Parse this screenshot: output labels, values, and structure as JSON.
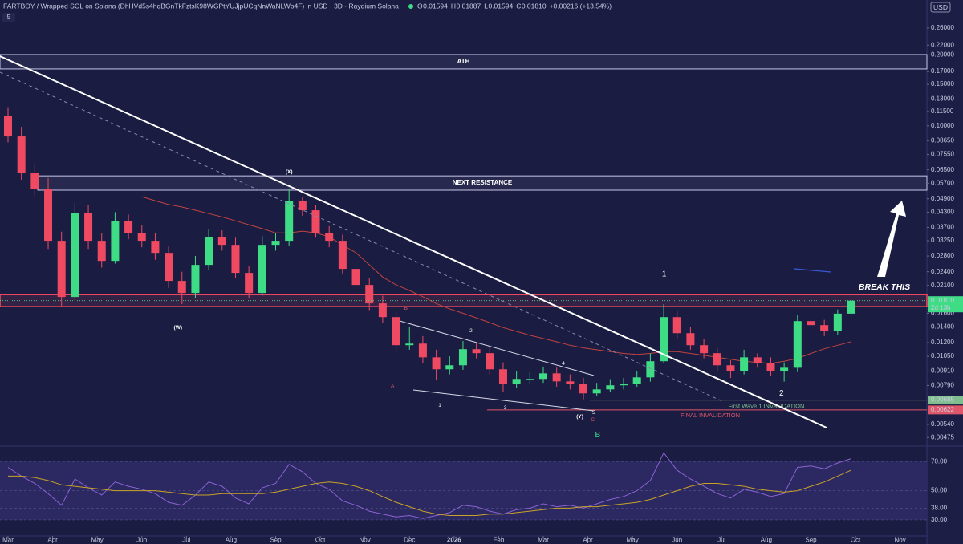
{
  "header": {
    "title": "FARTBOY / Wrapped SOL on Solana (DhHVd5s4hqBGnTkFztsK98WGPtYUJjpUCqNnWaNLWb4F) in USD · 3D · Raydium Solana",
    "quote": [
      {
        "label": "O",
        "value": "0.01594"
      },
      {
        "label": "H",
        "value": "0.01887"
      },
      {
        "label": "L",
        "value": "0.01594"
      },
      {
        "label": "C",
        "value": "0.01810"
      }
    ],
    "change": "+0.00216 (+13.54%)",
    "currency": "USD",
    "badge": "5"
  },
  "chart_data": [
    {
      "type": "candlestick",
      "y_scale": "log",
      "up_color": "#3fdc86",
      "down_color": "#ef4a62",
      "xlim": [
        -0.18,
        20.6
      ],
      "ylim": [
        0.0044,
        0.342
      ],
      "yticks": [
        {
          "value": 0.26,
          "label": "0.26000"
        },
        {
          "value": 0.22,
          "label": "0.22000"
        },
        {
          "value": 0.2,
          "label": "0.20000"
        },
        {
          "value": 0.17,
          "label": "0.17000"
        },
        {
          "value": 0.15,
          "label": "0.15000"
        },
        {
          "value": 0.13,
          "label": "0.13000"
        },
        {
          "value": 0.115,
          "label": "0.11500"
        },
        {
          "value": 0.1,
          "label": "0.10000"
        },
        {
          "value": 0.0865,
          "label": "0.08650"
        },
        {
          "value": 0.0755,
          "label": "0.07550"
        },
        {
          "value": 0.065,
          "label": "0.06500"
        },
        {
          "value": 0.057,
          "label": "0.05700"
        },
        {
          "value": 0.049,
          "label": "0.04900"
        },
        {
          "value": 0.043,
          "label": "0.04300"
        },
        {
          "value": 0.037,
          "label": "0.03700"
        },
        {
          "value": 0.0325,
          "label": "0.03250"
        },
        {
          "value": 0.028,
          "label": "0.02800"
        },
        {
          "value": 0.024,
          "label": "0.02400"
        },
        {
          "value": 0.021,
          "label": "0.02100"
        },
        {
          "value": 0.016,
          "label": "0.01600"
        },
        {
          "value": 0.014,
          "label": "0.01400"
        },
        {
          "value": 0.012,
          "label": "0.01200"
        },
        {
          "value": 0.0105,
          "label": "0.01050"
        },
        {
          "value": 0.0091,
          "label": "0.00910"
        },
        {
          "value": 0.0079,
          "label": "0.00790"
        },
        {
          "value": 0.0054,
          "label": "0.00540"
        },
        0.00475
      ],
      "x": [
        0,
        0.3,
        0.6,
        0.9,
        1.2,
        1.5,
        1.8,
        2.1,
        2.4,
        2.7,
        3,
        3.3,
        3.6,
        3.9,
        4.2,
        4.5,
        4.8,
        5.1,
        5.4,
        5.7,
        6,
        6.3,
        6.6,
        6.9,
        7.2,
        7.5,
        7.8,
        8.1,
        8.4,
        8.7,
        9,
        9.3,
        9.6,
        9.9,
        10.2,
        10.5,
        10.8,
        11.1,
        11.4,
        11.7,
        12,
        12.3,
        12.6,
        12.9,
        13.2,
        13.5,
        13.8,
        14.1,
        14.4,
        14.7,
        15,
        15.3,
        15.6,
        15.9,
        16.2,
        16.5,
        16.8,
        17.1,
        17.4,
        17.7,
        18,
        18.3,
        18.6,
        18.9
      ],
      "open": [
        0.11,
        0.0901,
        0.0633,
        0.0541,
        0.03249,
        0.01876,
        0.04276,
        0.03249,
        0.02669,
        0.03951,
        0.03512,
        0.03249,
        0.02887,
        0.02195,
        0.01951,
        0.02567,
        0.03378,
        0.03123,
        0.02374,
        0.01951,
        0.03123,
        0.03249,
        0.04811,
        0.04378,
        0.03512,
        0.03249,
        0.02469,
        0.0211,
        0.01762,
        0.01541,
        0.01171,
        0.01189,
        0.0104,
        0.00925,
        0.00962,
        0.01126,
        0.01083,
        0.00925,
        0.00803,
        0.00842,
        0.00842,
        0.00889,
        0.00822,
        0.00803,
        0.00731,
        0.0076,
        0.00791,
        0.00803,
        0.00855,
        0.01001,
        0.01541,
        0.01317,
        0.01171,
        0.01083,
        0.00962,
        0.0091,
        0.0104,
        0.00985,
        0.0091,
        0.00939,
        0.01482,
        0.01425,
        0.01349,
        0.01594
      ],
      "high": [
        0.12,
        0.099,
        0.069,
        0.06,
        0.0355,
        0.047,
        0.046,
        0.035,
        0.043,
        0.042,
        0.038,
        0.035,
        0.031,
        0.024,
        0.028,
        0.0365,
        0.036,
        0.0335,
        0.0255,
        0.034,
        0.035,
        0.054,
        0.05,
        0.046,
        0.0375,
        0.0345,
        0.0265,
        0.0225,
        0.019,
        0.0165,
        0.014,
        0.0128,
        0.0112,
        0.0105,
        0.0122,
        0.012,
        0.0116,
        0.0099,
        0.0091,
        0.009,
        0.0095,
        0.0094,
        0.0088,
        0.0085,
        0.0081,
        0.0084,
        0.0085,
        0.0091,
        0.0108,
        0.0175,
        0.0163,
        0.014,
        0.0124,
        0.0114,
        0.0101,
        0.0112,
        0.0108,
        0.0104,
        0.0099,
        0.0158,
        0.0175,
        0.015,
        0.0166,
        0.01887
      ],
      "low": [
        0.085,
        0.059,
        0.05,
        0.03,
        0.0172,
        0.018,
        0.03,
        0.025,
        0.026,
        0.033,
        0.0305,
        0.027,
        0.0205,
        0.0175,
        0.0185,
        0.0245,
        0.0295,
        0.0225,
        0.0185,
        0.019,
        0.0295,
        0.031,
        0.0415,
        0.0335,
        0.0305,
        0.0235,
        0.02,
        0.0165,
        0.0145,
        0.0108,
        0.0112,
        0.0098,
        0.0083,
        0.0088,
        0.0092,
        0.0103,
        0.0088,
        0.0074,
        0.0077,
        0.008,
        0.0081,
        0.0078,
        0.0076,
        0.0069,
        0.0071,
        0.0074,
        0.0076,
        0.0078,
        0.0082,
        0.0098,
        0.0125,
        0.0112,
        0.0103,
        0.0091,
        0.0085,
        0.0088,
        0.0094,
        0.0087,
        0.0082,
        0.009,
        0.0136,
        0.0128,
        0.013,
        0.01594
      ],
      "close": [
        0.0901,
        0.0633,
        0.0541,
        0.03249,
        0.01876,
        0.04276,
        0.03249,
        0.02669,
        0.03951,
        0.03512,
        0.03249,
        0.02887,
        0.02195,
        0.01951,
        0.02567,
        0.03378,
        0.03123,
        0.02374,
        0.01951,
        0.03123,
        0.03249,
        0.04811,
        0.04378,
        0.03512,
        0.03249,
        0.02469,
        0.0211,
        0.01762,
        0.01541,
        0.01171,
        0.01189,
        0.0104,
        0.00925,
        0.00962,
        0.01126,
        0.01083,
        0.00925,
        0.00803,
        0.00842,
        0.00842,
        0.00889,
        0.00822,
        0.00803,
        0.00731,
        0.0076,
        0.00791,
        0.00803,
        0.00855,
        0.01001,
        0.01541,
        0.01317,
        0.01171,
        0.01083,
        0.00962,
        0.0091,
        0.0104,
        0.00985,
        0.0091,
        0.00939,
        0.01482,
        0.01425,
        0.01349,
        0.01594,
        0.0181
      ],
      "ma": {
        "color": "#c0433f",
        "values": [
          null,
          null,
          null,
          null,
          null,
          null,
          null,
          null,
          null,
          null,
          0.05,
          0.0481,
          0.0463,
          0.0452,
          0.0438,
          0.0424,
          0.041,
          0.0395,
          0.038,
          0.0366,
          0.0351,
          0.0351,
          0.0357,
          0.0351,
          0.0338,
          0.0312,
          0.0289,
          0.0257,
          0.0228,
          0.0211,
          0.02,
          0.0188,
          0.0176,
          0.0167,
          0.016,
          0.0153,
          0.0146,
          0.0139,
          0.0134,
          0.0129,
          0.0125,
          0.0121,
          0.0117,
          0.0114,
          0.0112,
          0.011,
          0.0108,
          0.0107,
          0.0108,
          0.011,
          0.011,
          0.0108,
          0.0106,
          0.0104,
          0.0102,
          0.01,
          0.0099,
          0.0098,
          0.01,
          0.0103,
          0.0108,
          0.0113,
          0.0117,
          0.0121
        ]
      },
      "zones": [
        {
          "label": "ATH",
          "range": [
            0.1743,
            0.2007
          ],
          "color": "#c9c6e8"
        },
        {
          "label": "NEXT RESISTANCE",
          "range": [
            0.0533,
            0.0613
          ],
          "color": "#c9c6e8"
        },
        {
          "range": [
            0.01707,
            0.0192
          ],
          "color": "#ef4a62"
        }
      ],
      "levels": [
        {
          "value": 0.00685,
          "note": "First Wave 1 INVALIDATION",
          "color": "#7fbf8f"
        },
        {
          "value": 0.00622,
          "note": "FINAL INVALIDATION",
          "color": "#e0566a"
        }
      ],
      "last_price": {
        "value": 0.0181,
        "label": "0.01810",
        "countdown": "2d 13h"
      },
      "callout": "BREAK THIS",
      "annotations": [
        {
          "text": "(X)",
          "x": 6.3,
          "y": 0.0638,
          "color": "#ffffff"
        },
        {
          "text": "(W)",
          "x": 3.81,
          "y": 0.0139,
          "color": "#ffffff"
        },
        {
          "text": "(Y)",
          "x": 12.82,
          "y": 0.00582,
          "color": "#ffffff"
        },
        {
          "text": "A",
          "x": 8.62,
          "y": 0.00785,
          "color": "#e0566a"
        },
        {
          "text": "B",
          "x": 8.92,
          "y": 0.0168,
          "color": "#e0566a"
        },
        {
          "text": "C",
          "x": 13.11,
          "y": 0.00565,
          "color": "#e0566a"
        },
        {
          "text": "B",
          "x": 13.22,
          "y": 0.00486,
          "color": "#3fdc86"
        },
        {
          "text": "1",
          "x": 9.68,
          "y": 0.0065,
          "color": "#ffffff"
        },
        {
          "text": "2",
          "x": 10.38,
          "y": 0.0135,
          "color": "#ffffff"
        },
        {
          "text": "3",
          "x": 11.15,
          "y": 0.00635,
          "color": "#ffffff"
        },
        {
          "text": "4",
          "x": 12.45,
          "y": 0.00977,
          "color": "#ffffff"
        },
        {
          "text": "5",
          "x": 13.13,
          "y": 0.00605,
          "color": "#ffffff"
        },
        {
          "text": "1",
          "x": 14.71,
          "y": 0.0234,
          "color": "#ffffff"
        },
        {
          "text": "2",
          "x": 17.34,
          "y": 0.00731,
          "color": "#ffffff"
        }
      ]
    },
    {
      "type": "line",
      "xlim": [
        -0.18,
        20.6
      ],
      "ylim": [
        19,
        80
      ],
      "yticks": [
        {
          "value": 70,
          "label": "70.00"
        },
        {
          "value": 50,
          "label": "50.00"
        },
        {
          "value": 38,
          "label": "38.00"
        },
        {
          "value": 30,
          "label": "30.00"
        }
      ],
      "xticks": [
        {
          "value": 0,
          "label": "Mar"
        },
        {
          "value": 1,
          "label": "Apr"
        },
        {
          "value": 2,
          "label": "May"
        },
        {
          "value": 3,
          "label": "Jun"
        },
        {
          "value": 4,
          "label": "Jul"
        },
        {
          "value": 5,
          "label": "Aug"
        },
        {
          "value": 6,
          "label": "Sep"
        },
        {
          "value": 7,
          "label": "Oct"
        },
        {
          "value": 8,
          "label": "Nov"
        },
        {
          "value": 9,
          "label": "Dec"
        },
        {
          "value": 10,
          "label": "2026"
        },
        {
          "value": 11,
          "label": "Feb"
        },
        {
          "value": 12,
          "label": "Mar"
        },
        {
          "value": 13,
          "label": "Apr"
        },
        {
          "value": 14,
          "label": "May"
        },
        {
          "value": 15,
          "label": "Jun"
        },
        {
          "value": 16,
          "label": "Jul"
        },
        {
          "value": 17,
          "label": "Aug"
        },
        {
          "value": 18,
          "label": "Sep"
        },
        {
          "value": 19,
          "label": "Oct"
        },
        {
          "value": 20,
          "label": "Nov"
        }
      ],
      "x": [
        0,
        0.3,
        0.6,
        0.9,
        1.2,
        1.5,
        1.8,
        2.1,
        2.4,
        2.7,
        3,
        3.3,
        3.6,
        3.9,
        4.2,
        4.5,
        4.8,
        5.1,
        5.4,
        5.7,
        6,
        6.3,
        6.6,
        6.9,
        7.2,
        7.5,
        7.8,
        8.1,
        8.4,
        8.7,
        9,
        9.3,
        9.6,
        9.9,
        10.2,
        10.5,
        10.8,
        11.1,
        11.4,
        11.7,
        12,
        12.3,
        12.6,
        12.9,
        13.2,
        13.5,
        13.8,
        14.1,
        14.4,
        14.7,
        15,
        15.3,
        15.6,
        15.9,
        16.2,
        16.5,
        16.8,
        17.1,
        17.4,
        17.7,
        18,
        18.3,
        18.6,
        18.9
      ],
      "series": [
        {
          "color": "#8a63d2",
          "values": [
            66,
            60,
            55,
            48,
            40,
            58,
            52,
            47,
            56,
            53,
            51,
            48,
            42,
            40,
            47,
            56,
            53,
            45,
            41,
            52,
            55,
            68,
            63,
            55,
            51,
            43,
            40,
            36,
            34,
            32,
            33,
            31,
            33,
            35,
            40,
            39,
            36,
            34,
            37,
            38,
            41,
            39,
            40,
            38,
            41,
            44,
            46,
            50,
            57,
            76,
            64,
            58,
            53,
            48,
            45,
            51,
            49,
            46,
            48,
            66,
            67,
            65,
            69,
            72
          ]
        },
        {
          "color": "#c9a227",
          "values": [
            60,
            60,
            59,
            57,
            54,
            53,
            52,
            51,
            50,
            50,
            50,
            50,
            49,
            48,
            47,
            47,
            48,
            48,
            48,
            48,
            49,
            51,
            53,
            55,
            56,
            55,
            53,
            50,
            46,
            42,
            39,
            36,
            34,
            33,
            33,
            33,
            34,
            34,
            35,
            36,
            37,
            38,
            38,
            39,
            39,
            40,
            41,
            42,
            44,
            47,
            50,
            53,
            55,
            55,
            54,
            53,
            51,
            50,
            49,
            50,
            53,
            56,
            60,
            64
          ]
        }
      ]
    }
  ]
}
